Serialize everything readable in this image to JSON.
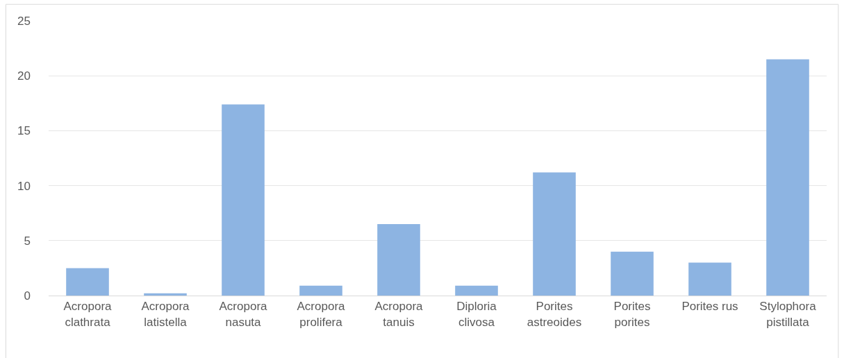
{
  "chart_data": {
    "type": "bar",
    "categories": [
      "Acropora\nclathrata",
      "Acropora\nlatistella",
      "Acropora\nnasuta",
      "Acropora\nprolifera",
      "Acropora\ntanuis",
      "Diploria\nclivosa",
      "Porites\nastreoides",
      "Porites\nporites",
      "Porites rus",
      "Stylophora\npistillata"
    ],
    "values": [
      2.5,
      0.2,
      17.4,
      0.9,
      6.5,
      0.9,
      11.2,
      4.0,
      3.0,
      21.5
    ],
    "color": "#8db4e2",
    "ylim": [
      0,
      25
    ],
    "yticks": [
      0,
      5,
      10,
      15,
      20,
      25
    ],
    "grid": "y"
  }
}
